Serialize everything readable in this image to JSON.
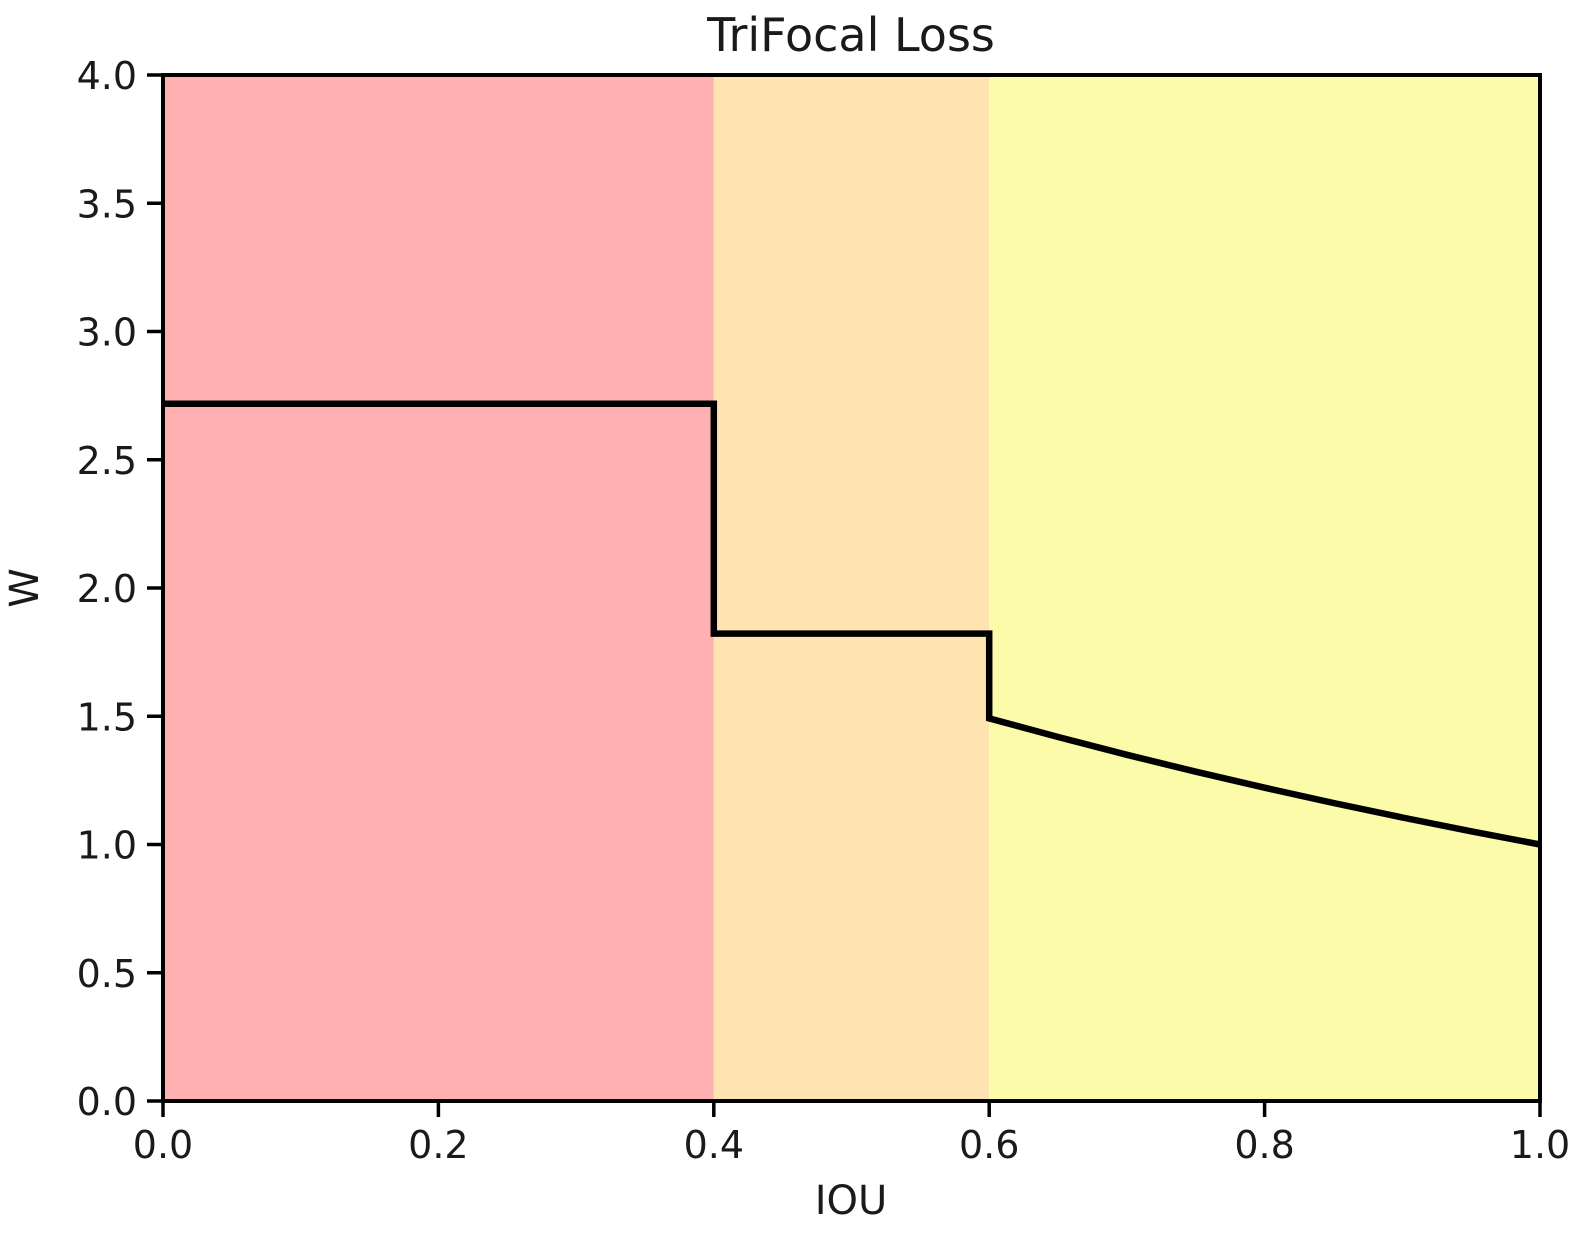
{
  "chart_data": {
    "type": "line",
    "title": "TriFocal Loss",
    "xlabel": "IOU",
    "ylabel": "W",
    "xlim": [
      0.0,
      1.0
    ],
    "ylim": [
      0.0,
      4.0
    ],
    "grid": false,
    "legend": false,
    "xticks": [
      {
        "value": 0.0,
        "label": "0.0"
      },
      {
        "value": 0.2,
        "label": "0.2"
      },
      {
        "value": 0.4,
        "label": "0.4"
      },
      {
        "value": 0.6,
        "label": "0.6"
      },
      {
        "value": 0.8,
        "label": "0.8"
      },
      {
        "value": 1.0,
        "label": "1.0"
      }
    ],
    "yticks": [
      {
        "value": 0.0,
        "label": "0.0"
      },
      {
        "value": 0.5,
        "label": "0.5"
      },
      {
        "value": 1.0,
        "label": "1.0"
      },
      {
        "value": 1.5,
        "label": "1.5"
      },
      {
        "value": 2.0,
        "label": "2.0"
      },
      {
        "value": 2.5,
        "label": "2.5"
      },
      {
        "value": 3.0,
        "label": "3.0"
      },
      {
        "value": 3.5,
        "label": "3.5"
      },
      {
        "value": 4.0,
        "label": "4.0"
      }
    ],
    "background_regions": [
      {
        "x_from": 0.0,
        "x_to": 0.4,
        "color": "#ffb1b1"
      },
      {
        "x_from": 0.4,
        "x_to": 0.6,
        "color": "#ffe3b1"
      },
      {
        "x_from": 0.6,
        "x_to": 1.0,
        "color": "#fbfbaa"
      }
    ],
    "series": [
      {
        "name": "W",
        "color": "#000000",
        "line_width": 6.5,
        "points": [
          [
            0.0,
            2.7183
          ],
          [
            0.4,
            2.7183
          ],
          [
            0.4,
            1.8221
          ],
          [
            0.6,
            1.8221
          ],
          [
            0.6,
            1.4918
          ],
          [
            0.65,
            1.4191
          ],
          [
            0.7,
            1.3499
          ],
          [
            0.75,
            1.284
          ],
          [
            0.8,
            1.2214
          ],
          [
            0.85,
            1.1618
          ],
          [
            0.9,
            1.1052
          ],
          [
            0.95,
            1.0513
          ],
          [
            1.0,
            1.0
          ]
        ]
      }
    ],
    "frame_color": "#000000"
  }
}
